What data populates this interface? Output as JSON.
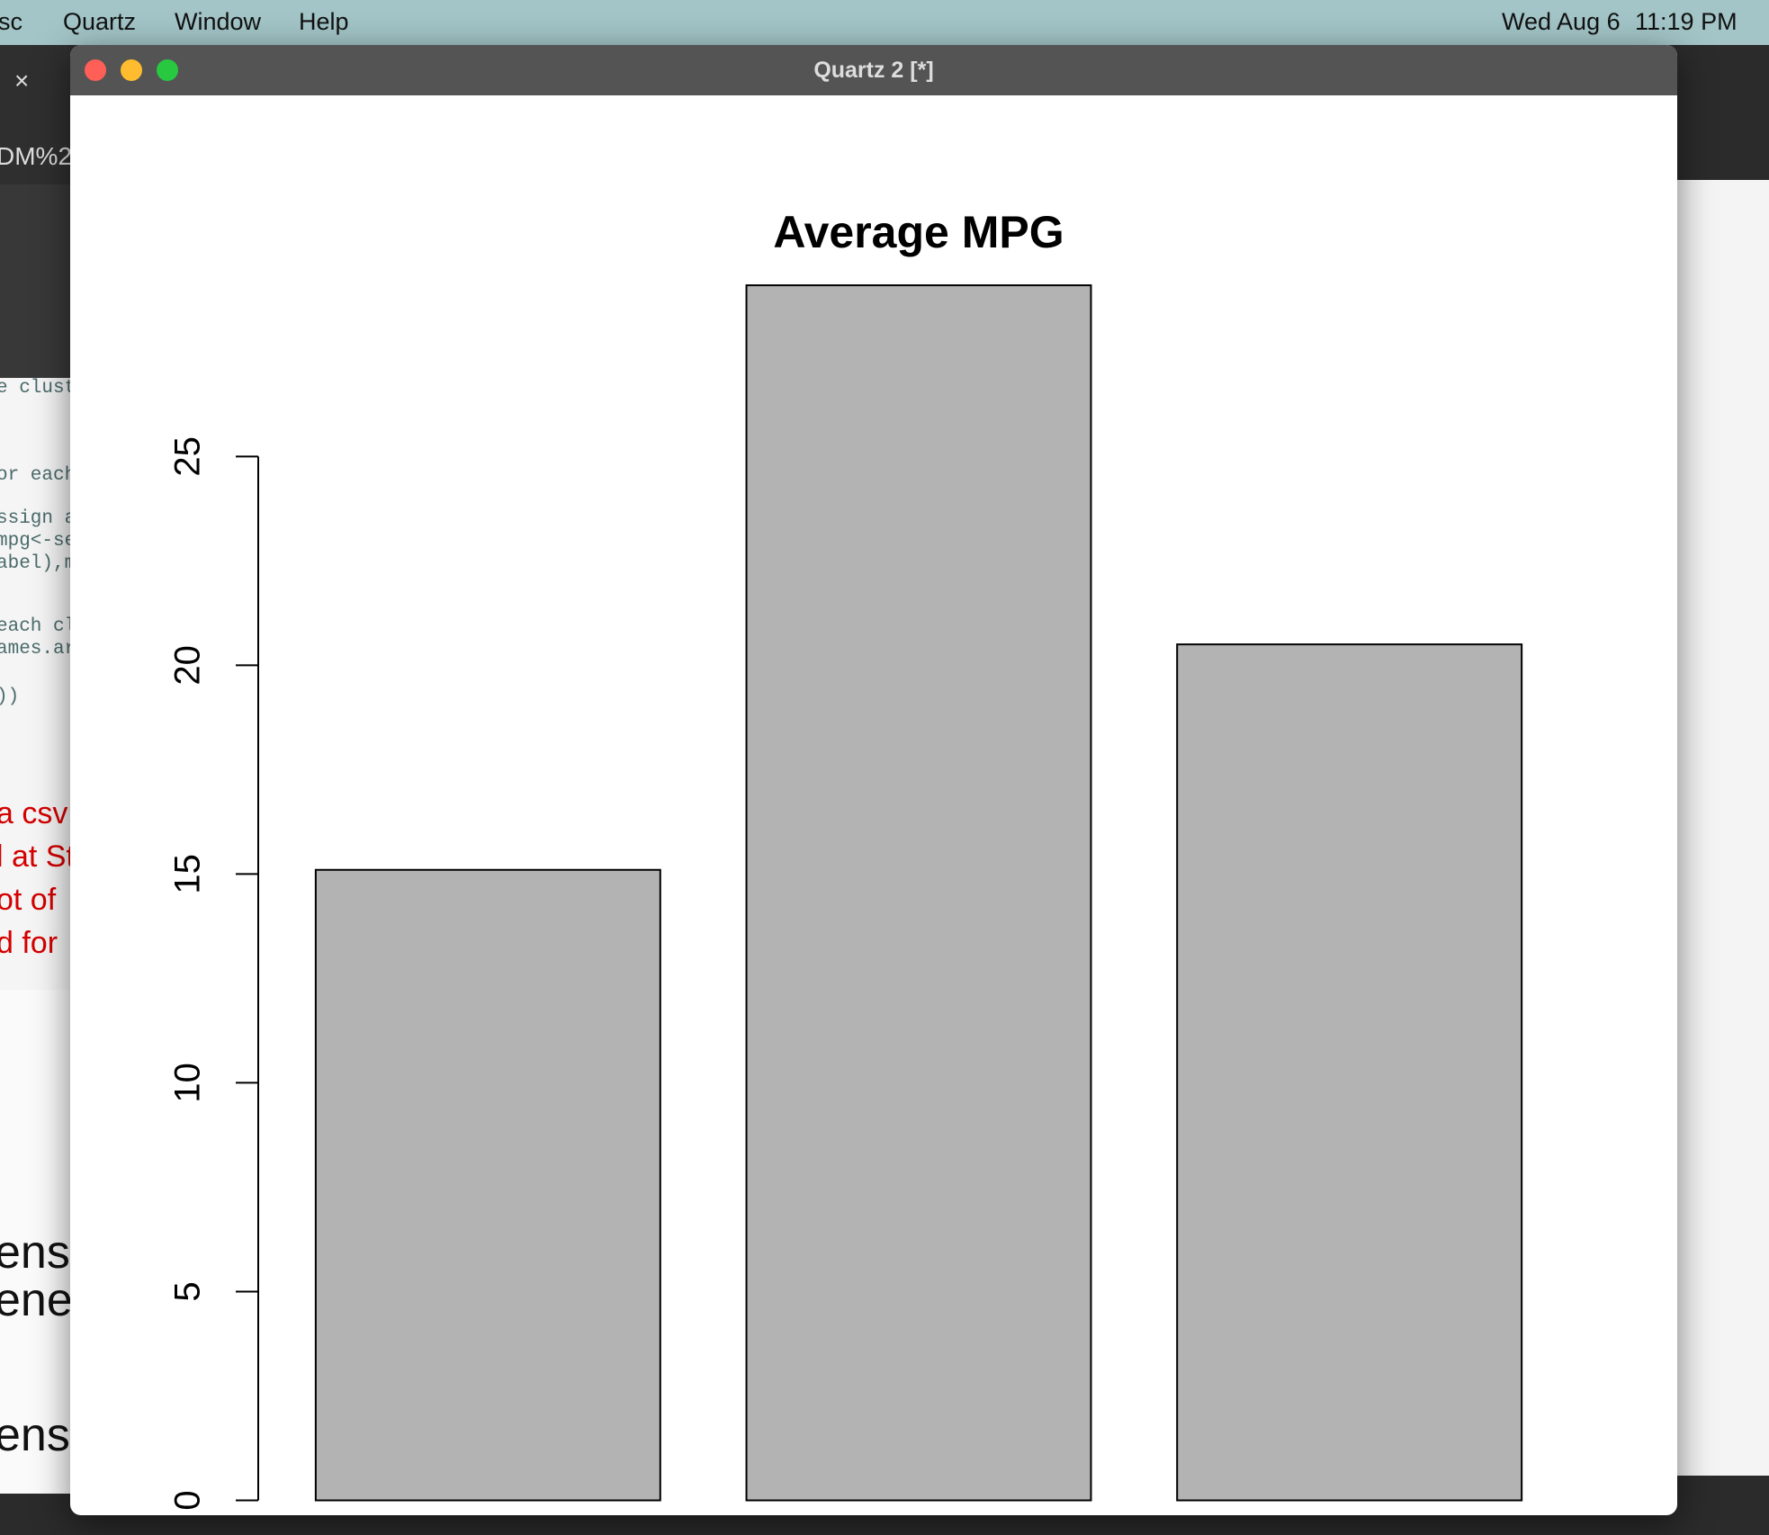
{
  "menu_bar": {
    "app_fragment": "sc",
    "items": [
      "Quartz",
      "Window",
      "Help"
    ],
    "date": "Wed Aug 6",
    "time": "11:19 PM"
  },
  "background": {
    "tab_fragment": "DM%2",
    "code_fragments": [
      "e clust",
      "or each",
      "ssign a",
      "mpg<-se",
      "abel),m",
      "each cl",
      "ames.ar",
      "))"
    ],
    "note_fragments": [
      "a csv",
      "l at St",
      "ot of",
      "d for"
    ],
    "doc_fragments": [
      "ensl",
      "ener",
      "ensl"
    ]
  },
  "window": {
    "title": "Quartz 2 [*]"
  },
  "chart_data": {
    "type": "bar",
    "title": "Average MPG",
    "categories": [
      null,
      null,
      null
    ],
    "values": [
      15.1,
      29.1,
      20.5
    ],
    "color": "#b3b3b3",
    "ylim": [
      0,
      30
    ],
    "yticks": [
      0,
      5,
      10,
      15,
      20,
      25
    ],
    "grid": false
  }
}
